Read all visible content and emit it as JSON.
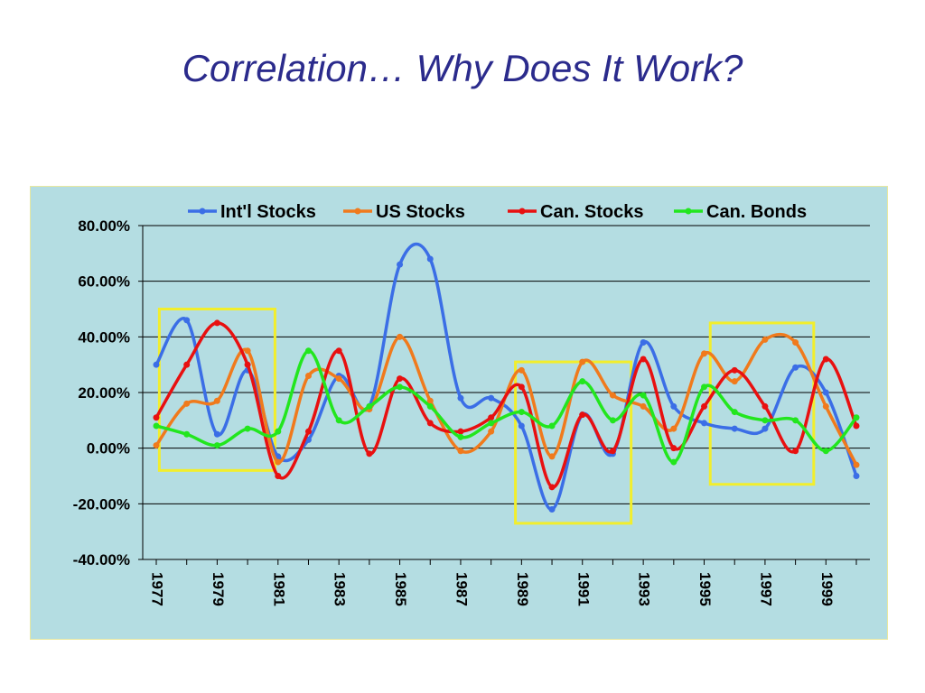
{
  "slide": {
    "title": "Correlation… Why Does It Work?"
  },
  "chart_data": {
    "type": "line",
    "title": "",
    "xlabel": "",
    "ylabel": "",
    "x": [
      1977,
      1978,
      1979,
      1980,
      1981,
      1982,
      1983,
      1984,
      1985,
      1986,
      1987,
      1988,
      1989,
      1990,
      1991,
      1992,
      1993,
      1994,
      1995,
      1996,
      1997,
      1998,
      1999,
      2000
    ],
    "x_tick_labels": [
      "1977",
      "1979",
      "1981",
      "1983",
      "1985",
      "1987",
      "1989",
      "1991",
      "1993",
      "1995",
      "1997",
      "1999"
    ],
    "ylim": [
      -40,
      80
    ],
    "y_ticks": [
      -40,
      -20,
      0,
      20,
      40,
      60,
      80
    ],
    "y_tick_labels": [
      "-40.00%",
      "-20.00%",
      "0.00%",
      "20.00%",
      "40.00%",
      "60.00%",
      "80.00%"
    ],
    "grid": "horizontal",
    "legend_position": "top",
    "series": [
      {
        "name": "Int'l Stocks",
        "color": "#3b6ee6",
        "values": [
          30,
          46,
          5,
          28,
          -3,
          3,
          26,
          15,
          66,
          68,
          18,
          18,
          8,
          -22,
          12,
          -2,
          38,
          15,
          9,
          7,
          7,
          29,
          20,
          -10
        ]
      },
      {
        "name": "US Stocks",
        "color": "#f07a1c",
        "values": [
          1,
          16,
          17,
          35,
          -5,
          26,
          25,
          14,
          40,
          17,
          -1,
          6,
          28,
          -3,
          31,
          19,
          15,
          7,
          34,
          24,
          39,
          38,
          15,
          -6
        ]
      },
      {
        "name": "Can. Stocks",
        "color": "#e81010",
        "values": [
          11,
          30,
          45,
          30,
          -10,
          6,
          35,
          -2,
          25,
          9,
          6,
          11,
          22,
          -14,
          12,
          -1,
          32,
          0,
          15,
          28,
          15,
          -1,
          32,
          8
        ]
      },
      {
        "name": "Can. Bonds",
        "color": "#22e61e",
        "values": [
          8,
          5,
          1,
          7,
          6,
          35,
          10,
          15,
          22,
          15,
          4,
          9,
          13,
          8,
          24,
          10,
          19,
          -5,
          22,
          13,
          10,
          10,
          -1,
          11
        ]
      }
    ],
    "highlight_boxes": [
      {
        "x_from": 1977.1,
        "x_to": 1980.9,
        "y_from": -8,
        "y_to": 50,
        "color": "#f2ee2c"
      },
      {
        "x_from": 1988.8,
        "x_to": 1992.6,
        "y_from": -27,
        "y_to": 31,
        "color": "#f2ee2c"
      },
      {
        "x_from": 1995.2,
        "x_to": 1998.6,
        "y_from": -13,
        "y_to": 45,
        "color": "#f2ee2c"
      }
    ]
  }
}
